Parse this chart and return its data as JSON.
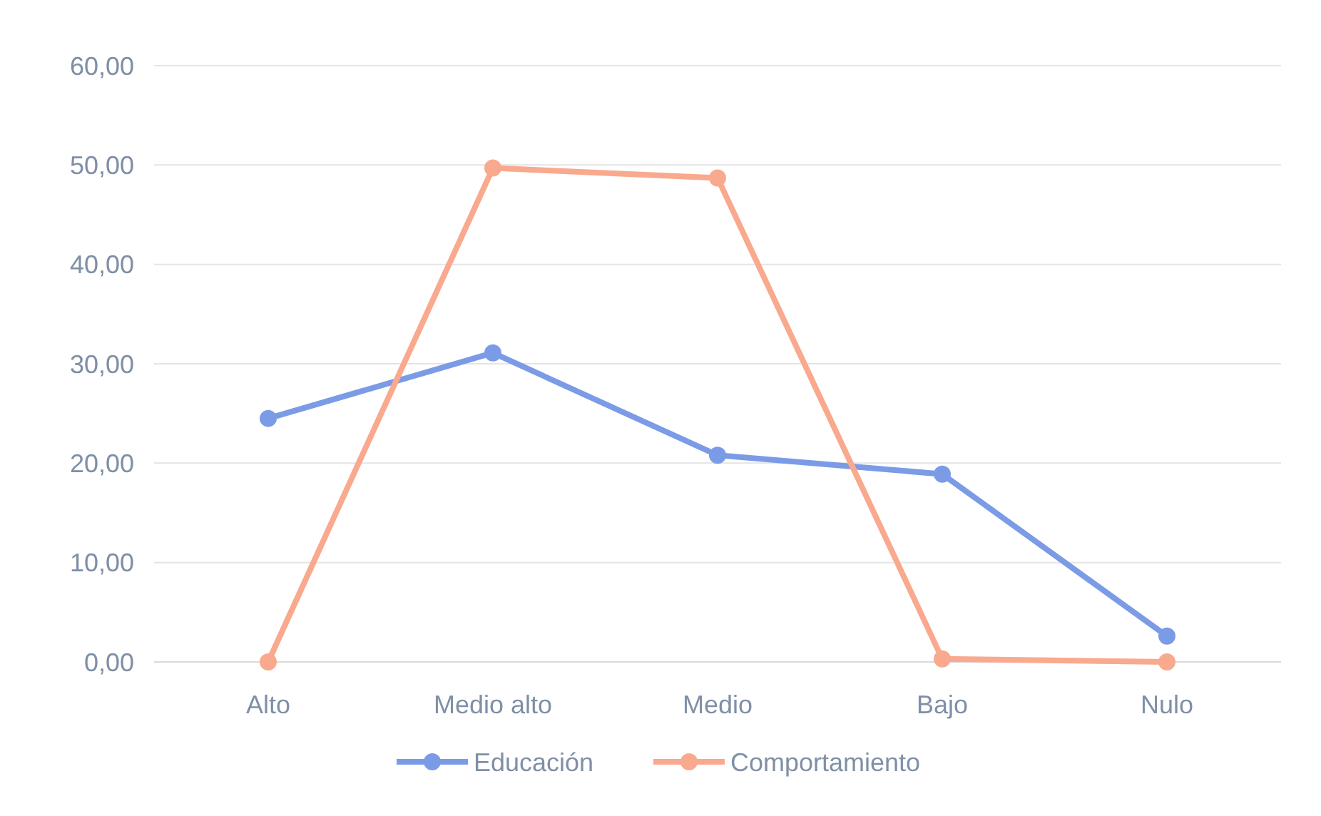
{
  "chart_data": {
    "type": "line",
    "categories": [
      "Alto",
      "Medio alto",
      "Medio",
      "Bajo",
      "Nulo"
    ],
    "series": [
      {
        "name": "Educación",
        "color": "#7b9be6",
        "values": [
          24.5,
          31.1,
          20.8,
          18.9,
          2.6
        ]
      },
      {
        "name": "Comportamiento",
        "color": "#f9a98e",
        "values": [
          0,
          49.7,
          48.7,
          0.3,
          0
        ]
      }
    ],
    "ylim": [
      0,
      60
    ],
    "yticks": [
      {
        "value": 0,
        "label": "0,00"
      },
      {
        "value": 10,
        "label": "10,00"
      },
      {
        "value": 20,
        "label": "20,00"
      },
      {
        "value": 30,
        "label": "30,00"
      },
      {
        "value": 40,
        "label": "40,00"
      },
      {
        "value": 50,
        "label": "50,00"
      },
      {
        "value": 60,
        "label": "60,00"
      }
    ],
    "grid": "y",
    "legend": "bottom",
    "marker": "circle",
    "line_style": "solid"
  }
}
